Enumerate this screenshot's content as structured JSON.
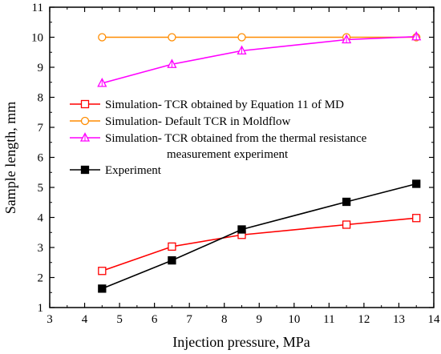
{
  "chart_data": {
    "type": "line",
    "title": "",
    "xlabel": "Injection pressure, MPa",
    "ylabel": "Sample length, mm",
    "xlim": [
      3,
      14
    ],
    "ylim": [
      1,
      11
    ],
    "xticks": [
      3,
      4,
      5,
      6,
      7,
      8,
      9,
      10,
      11,
      12,
      13,
      14
    ],
    "yticks": [
      1,
      2,
      3,
      4,
      5,
      6,
      7,
      8,
      9,
      10,
      11
    ],
    "grid": false,
    "legend_position": "center-left",
    "series": [
      {
        "name": "Simulation- TCR obtained by Equation 11 of MD",
        "color": "#ff0000",
        "marker": "square-open",
        "x": [
          4.5,
          6.5,
          8.5,
          11.5,
          13.5
        ],
        "y": [
          2.22,
          3.03,
          3.42,
          3.76,
          3.98
        ]
      },
      {
        "name": "Simulation- Default TCR in Moldflow",
        "color": "#ff8c00",
        "marker": "circle-open",
        "x": [
          4.5,
          6.5,
          8.5,
          11.5,
          13.5
        ],
        "y": [
          10.0,
          10.0,
          10.0,
          10.0,
          10.0
        ]
      },
      {
        "name": "Simulation- TCR obtained from the  thermal resistance",
        "name_line2": "measurement experiment",
        "color": "#ff00ff",
        "marker": "triangle-open",
        "x": [
          4.5,
          6.5,
          8.5,
          11.5,
          13.5
        ],
        "y": [
          8.47,
          9.1,
          9.55,
          9.92,
          10.02
        ]
      },
      {
        "name": "Experiment",
        "color": "#000000",
        "marker": "square-filled",
        "x": [
          4.5,
          6.5,
          8.5,
          11.5,
          13.5
        ],
        "y": [
          1.63,
          2.57,
          3.6,
          4.52,
          5.12
        ]
      }
    ]
  }
}
